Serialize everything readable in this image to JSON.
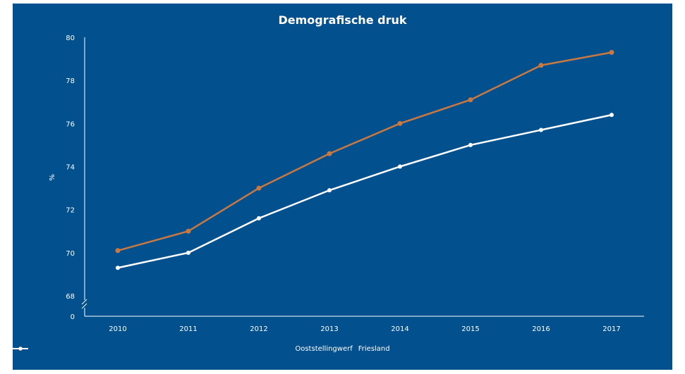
{
  "chart_data": {
    "type": "line",
    "title": "Demografische druk",
    "ylabel": "%",
    "xlabel": "",
    "x": [
      "2010",
      "2011",
      "2012",
      "2013",
      "2014",
      "2015",
      "2016",
      "2017"
    ],
    "yticks": [
      "0",
      "68",
      "70",
      "72",
      "74",
      "76",
      "78",
      "80"
    ],
    "ylim": [
      68,
      80
    ],
    "axis_break": true,
    "series": [
      {
        "name": "Ooststellingwerf",
        "color": "#c87941",
        "values": [
          70.1,
          71.0,
          73.0,
          74.6,
          76.0,
          77.1,
          78.7,
          79.3
        ]
      },
      {
        "name": "Friesland",
        "color": "#ffffff",
        "values": [
          69.3,
          70.0,
          71.6,
          72.9,
          74.0,
          75.0,
          75.7,
          76.4
        ]
      }
    ],
    "legend_position": "bottom-center",
    "background": "#03508f"
  }
}
